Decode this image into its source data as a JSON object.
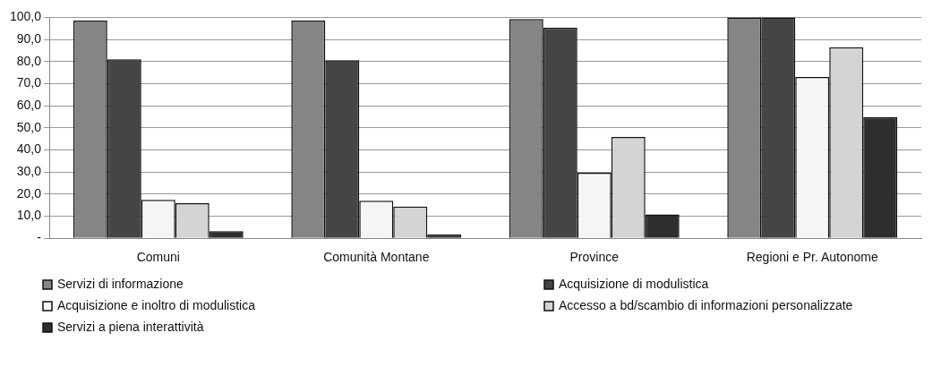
{
  "chart_data": {
    "type": "bar",
    "categories": [
      "Comuni",
      "Comunità Montane",
      "Province",
      "Regioni e Pr. Autonome"
    ],
    "series": [
      {
        "name": "Servizi di informazione",
        "color": "#858585",
        "values": [
          98.5,
          98.5,
          99.3,
          100
        ]
      },
      {
        "name": "Acquisizione di modulistica",
        "color": "#454545",
        "values": [
          81,
          80.6,
          95.3,
          100
        ]
      },
      {
        "name": "Acquisizione e inoltro di modulistica",
        "color": "#f5f5f5",
        "values": [
          17.4,
          17,
          29.7,
          73
        ]
      },
      {
        "name": "Accesso a bd/scambio di informazioni personalizzate",
        "color": "#d4d4d4",
        "values": [
          15.9,
          14.4,
          45.9,
          86.5
        ]
      },
      {
        "name": "Servizi a piena interattività",
        "color": "#2e2e2e",
        "values": [
          3.2,
          1.7,
          10.8,
          54.9
        ]
      }
    ],
    "ylim": [
      0,
      100
    ],
    "yticks": [
      {
        "value": 0,
        "label": "-"
      },
      {
        "value": 10,
        "label": "10,0"
      },
      {
        "value": 20,
        "label": "20,0"
      },
      {
        "value": 30,
        "label": "30,0"
      },
      {
        "value": 40,
        "label": "40,0"
      },
      {
        "value": 50,
        "label": "50,0"
      },
      {
        "value": 60,
        "label": "60,0"
      },
      {
        "value": 70,
        "label": "70,0"
      },
      {
        "value": 80,
        "label": "80,0"
      },
      {
        "value": 90,
        "label": "90,0"
      },
      {
        "value": 100,
        "label": "100,0"
      }
    ],
    "grid": "y",
    "legend": "bottom"
  }
}
